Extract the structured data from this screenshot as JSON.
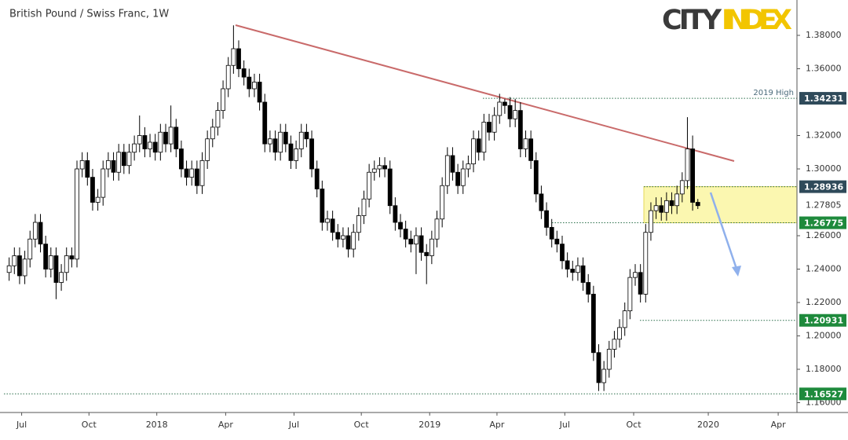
{
  "chart_data": {
    "type": "candlestick",
    "title": "British Pound / Swiss Franc, 1W",
    "logo": {
      "left": "CITY",
      "right": "INDEX"
    },
    "up_color": "#ffffff",
    "down_color": "#000000",
    "open": [
      1.238,
      1.242,
      1.248,
      1.236,
      1.246,
      1.258,
      1.268,
      1.255,
      1.24,
      1.248,
      1.232,
      1.238,
      1.248,
      1.246,
      1.3,
      1.305,
      1.295,
      1.28,
      1.283,
      1.3,
      1.305,
      1.298,
      1.31,
      1.302,
      1.31,
      1.315,
      1.32,
      1.312,
      1.316,
      1.31,
      1.322,
      1.315,
      1.325,
      1.312,
      1.3,
      1.295,
      1.3,
      1.29,
      1.305,
      1.318,
      1.325,
      1.335,
      1.348,
      1.362,
      1.372,
      1.36,
      1.355,
      1.348,
      1.352,
      1.34,
      1.315,
      1.318,
      1.31,
      1.322,
      1.315,
      1.305,
      1.312,
      1.322,
      1.318,
      1.3,
      1.288,
      1.268,
      1.27,
      1.262,
      1.258,
      1.26,
      1.252,
      1.262,
      1.272,
      1.282,
      1.298,
      1.3,
      1.302,
      1.3,
      1.278,
      1.268,
      1.264,
      1.258,
      1.255,
      1.26,
      1.25,
      1.248,
      1.258,
      1.27,
      1.29,
      1.308,
      1.298,
      1.29,
      1.3,
      1.303,
      1.318,
      1.31,
      1.328,
      1.322,
      1.332,
      1.34,
      1.338,
      1.33,
      1.335,
      1.312,
      1.318,
      1.305,
      1.285,
      1.275,
      1.265,
      1.258,
      1.255,
      1.245,
      1.24,
      1.238,
      1.242,
      1.232,
      1.225,
      1.19,
      1.172,
      1.18,
      1.192,
      1.198,
      1.205,
      1.215,
      1.235,
      1.238,
      1.225,
      1.262,
      1.275,
      1.278,
      1.274,
      1.281,
      1.278,
      1.285,
      1.293,
      1.312,
      1.28
    ],
    "high": [
      1.247,
      1.253,
      1.253,
      1.251,
      1.263,
      1.273,
      1.273,
      1.26,
      1.253,
      1.253,
      1.243,
      1.253,
      1.253,
      1.305,
      1.31,
      1.31,
      1.3,
      1.288,
      1.305,
      1.31,
      1.31,
      1.315,
      1.315,
      1.315,
      1.32,
      1.332,
      1.325,
      1.321,
      1.321,
      1.327,
      1.327,
      1.338,
      1.33,
      1.317,
      1.305,
      1.305,
      1.305,
      1.31,
      1.323,
      1.33,
      1.34,
      1.353,
      1.367,
      1.386,
      1.377,
      1.365,
      1.36,
      1.357,
      1.357,
      1.345,
      1.323,
      1.323,
      1.327,
      1.327,
      1.32,
      1.317,
      1.327,
      1.327,
      1.323,
      1.305,
      1.293,
      1.275,
      1.275,
      1.267,
      1.265,
      1.265,
      1.267,
      1.277,
      1.287,
      1.303,
      1.305,
      1.307,
      1.307,
      1.305,
      1.283,
      1.273,
      1.269,
      1.263,
      1.265,
      1.265,
      1.255,
      1.263,
      1.275,
      1.295,
      1.313,
      1.313,
      1.303,
      1.305,
      1.308,
      1.323,
      1.323,
      1.333,
      1.333,
      1.337,
      1.345,
      1.342,
      1.343,
      1.342,
      1.34,
      1.323,
      1.323,
      1.31,
      1.29,
      1.28,
      1.27,
      1.263,
      1.26,
      1.25,
      1.245,
      1.247,
      1.247,
      1.237,
      1.23,
      1.195,
      1.185,
      1.197,
      1.203,
      1.21,
      1.22,
      1.24,
      1.243,
      1.243,
      1.267,
      1.28,
      1.283,
      1.283,
      1.286,
      1.286,
      1.29,
      1.298,
      1.331,
      1.32,
      1.282
    ],
    "low": [
      1.233,
      1.237,
      1.231,
      1.231,
      1.241,
      1.253,
      1.25,
      1.235,
      1.235,
      1.222,
      1.227,
      1.233,
      1.241,
      1.241,
      1.295,
      1.29,
      1.275,
      1.275,
      1.278,
      1.295,
      1.293,
      1.293,
      1.297,
      1.297,
      1.305,
      1.31,
      1.307,
      1.307,
      1.305,
      1.305,
      1.31,
      1.31,
      1.307,
      1.295,
      1.29,
      1.29,
      1.285,
      1.285,
      1.3,
      1.313,
      1.32,
      1.33,
      1.343,
      1.357,
      1.355,
      1.35,
      1.343,
      1.343,
      1.335,
      1.31,
      1.31,
      1.305,
      1.305,
      1.31,
      1.3,
      1.3,
      1.307,
      1.313,
      1.295,
      1.283,
      1.263,
      1.263,
      1.257,
      1.253,
      1.253,
      1.247,
      1.247,
      1.257,
      1.267,
      1.277,
      1.293,
      1.295,
      1.295,
      1.273,
      1.263,
      1.259,
      1.253,
      1.25,
      1.237,
      1.245,
      1.231,
      1.243,
      1.253,
      1.265,
      1.285,
      1.293,
      1.285,
      1.285,
      1.295,
      1.298,
      1.305,
      1.305,
      1.317,
      1.317,
      1.327,
      1.333,
      1.325,
      1.325,
      1.307,
      1.307,
      1.3,
      1.28,
      1.27,
      1.26,
      1.253,
      1.25,
      1.24,
      1.235,
      1.233,
      1.233,
      1.227,
      1.22,
      1.185,
      1.167,
      1.167,
      1.175,
      1.187,
      1.193,
      1.2,
      1.21,
      1.23,
      1.22,
      1.22,
      1.257,
      1.27,
      1.269,
      1.269,
      1.273,
      1.273,
      1.28,
      1.288,
      1.275,
      1.276
    ],
    "close": [
      1.242,
      1.248,
      1.236,
      1.246,
      1.258,
      1.268,
      1.255,
      1.24,
      1.248,
      1.232,
      1.238,
      1.248,
      1.246,
      1.3,
      1.305,
      1.295,
      1.28,
      1.283,
      1.3,
      1.305,
      1.298,
      1.31,
      1.302,
      1.31,
      1.315,
      1.32,
      1.312,
      1.316,
      1.31,
      1.322,
      1.315,
      1.325,
      1.312,
      1.3,
      1.295,
      1.3,
      1.29,
      1.305,
      1.318,
      1.325,
      1.335,
      1.348,
      1.362,
      1.372,
      1.36,
      1.355,
      1.348,
      1.352,
      1.34,
      1.315,
      1.318,
      1.31,
      1.322,
      1.315,
      1.305,
      1.312,
      1.322,
      1.318,
      1.3,
      1.288,
      1.268,
      1.27,
      1.262,
      1.258,
      1.26,
      1.252,
      1.262,
      1.272,
      1.282,
      1.298,
      1.3,
      1.302,
      1.3,
      1.278,
      1.268,
      1.264,
      1.258,
      1.255,
      1.26,
      1.25,
      1.248,
      1.258,
      1.27,
      1.29,
      1.308,
      1.298,
      1.29,
      1.3,
      1.303,
      1.318,
      1.31,
      1.328,
      1.322,
      1.332,
      1.34,
      1.338,
      1.33,
      1.335,
      1.312,
      1.318,
      1.305,
      1.285,
      1.275,
      1.265,
      1.258,
      1.255,
      1.245,
      1.24,
      1.238,
      1.242,
      1.232,
      1.225,
      1.19,
      1.172,
      1.18,
      1.192,
      1.198,
      1.205,
      1.215,
      1.235,
      1.238,
      1.225,
      1.262,
      1.275,
      1.278,
      1.274,
      1.281,
      1.278,
      1.285,
      1.293,
      1.312,
      1.28,
      1.278
    ],
    "xlim": [
      -1,
      151
    ],
    "xticks": [
      {
        "value": 2.4,
        "label": "Jul"
      },
      {
        "value": 15.3,
        "label": "Oct"
      },
      {
        "value": 28.3,
        "label": "2018"
      },
      {
        "value": 41.5,
        "label": "Apr"
      },
      {
        "value": 54.6,
        "label": "Jul"
      },
      {
        "value": 67.5,
        "label": "Oct"
      },
      {
        "value": 80.6,
        "label": "2019"
      },
      {
        "value": 93.5,
        "label": "Apr"
      },
      {
        "value": 106.5,
        "label": "Jul"
      },
      {
        "value": 119.7,
        "label": "Oct"
      },
      {
        "value": 134.0,
        "label": "2020"
      },
      {
        "value": 147.4,
        "label": "Apr"
      }
    ],
    "ylim": [
      1.15412,
      1.39882
    ],
    "yticks": [
      {
        "value": 1.16,
        "label": "1.16000"
      },
      {
        "value": 1.18,
        "label": "1.18000"
      },
      {
        "value": 1.2,
        "label": "1.20000"
      },
      {
        "value": 1.22,
        "label": "1.22000"
      },
      {
        "value": 1.24,
        "label": "1.24000"
      },
      {
        "value": 1.26,
        "label": "1.26000"
      },
      {
        "value": 1.3,
        "label": "1.30000"
      },
      {
        "value": 1.32,
        "label": "1.32000"
      },
      {
        "value": 1.36,
        "label": "1.36000"
      },
      {
        "value": 1.38,
        "label": "1.38000"
      }
    ],
    "last_price": 1.27805,
    "levels": [
      {
        "value": 1.34231,
        "color": "#2f4a5a"
      },
      {
        "value": 1.28936,
        "color": "#2f4a5a"
      },
      {
        "value": 1.26775,
        "color": "#1e8a3c"
      },
      {
        "value": 1.20931,
        "color": "#1e8a3c"
      },
      {
        "value": 1.16527,
        "color": "#1e8a3c"
      }
    ],
    "level_note": "2019 High"
  }
}
